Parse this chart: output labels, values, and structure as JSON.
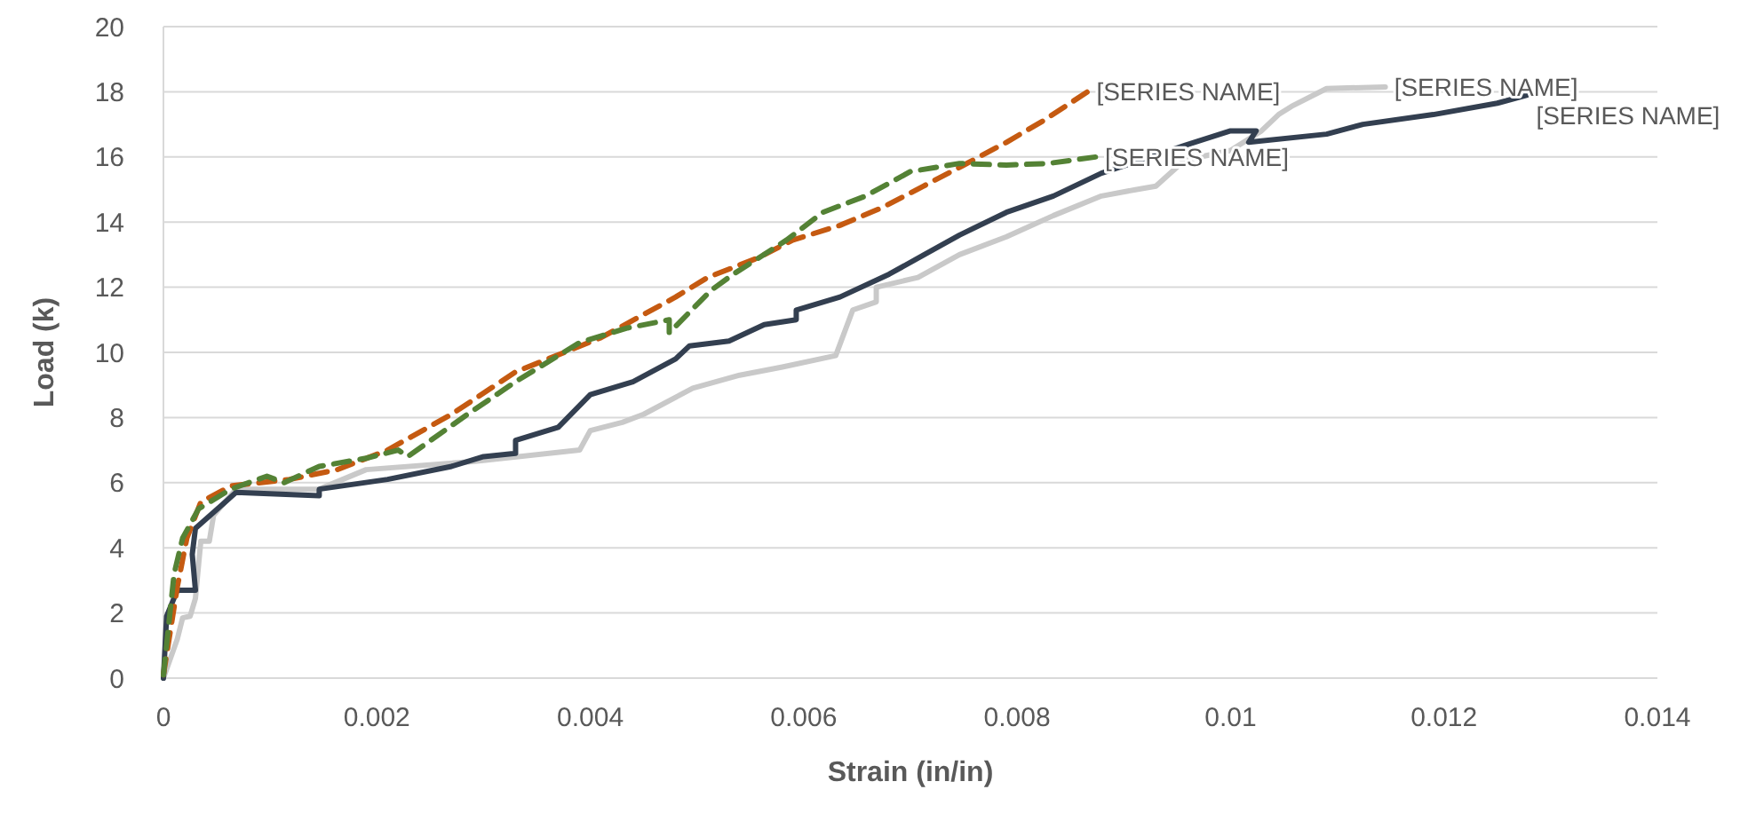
{
  "chart_data": {
    "type": "line",
    "xlabel": "Strain (in/in)",
    "ylabel": "Load (k)",
    "xlim": [
      0,
      0.014
    ],
    "xticks": [
      0,
      0.002,
      0.004,
      0.006,
      0.008,
      0.01,
      0.012,
      0.014
    ],
    "ylim": [
      0,
      20
    ],
    "yticks": [
      0,
      2,
      4,
      6,
      8,
      10,
      12,
      14,
      16,
      18,
      20
    ],
    "grid": "y",
    "marker": "none",
    "series": [
      {
        "name": "[SERIES NAME]",
        "color": "#c9c9c9",
        "line_style": "solid",
        "x": [
          0,
          0.00013,
          0.00018,
          0.00025,
          0.0003,
          0.00035,
          0.00043,
          0.00047,
          0.00068,
          0.00146,
          0.0019,
          0.0029,
          0.0039,
          0.004,
          0.0043,
          0.0045,
          0.00496,
          0.0054,
          0.0058,
          0.0063,
          0.00646,
          0.00668,
          0.00668,
          0.00707,
          0.00746,
          0.0079,
          0.00834,
          0.00879,
          0.00912,
          0.0093,
          0.00957,
          0.01,
          0.01029,
          0.01045,
          0.01057,
          0.0109,
          0.01145
        ],
        "values": [
          0,
          1.2,
          1.85,
          1.9,
          2.45,
          4.2,
          4.2,
          5.0,
          5.8,
          5.8,
          6.4,
          6.65,
          7.0,
          7.6,
          7.85,
          8.1,
          8.9,
          9.3,
          9.55,
          9.9,
          11.3,
          11.55,
          12.0,
          12.3,
          13.0,
          13.55,
          14.2,
          14.8,
          15.0,
          15.1,
          15.9,
          16.2,
          16.8,
          17.3,
          17.55,
          18.1,
          18.15
        ]
      },
      {
        "name": "[SERIES NAME]",
        "color": "#333f50",
        "line_style": "solid",
        "x": [
          0,
          3e-05,
          0.00013,
          0.0003,
          0.00027,
          0.0003,
          0.00068,
          0.00146,
          0.00146,
          0.0021,
          0.0027,
          0.003,
          0.0033,
          0.0033,
          0.0037,
          0.004,
          0.0044,
          0.0048,
          0.00493,
          0.0053,
          0.00563,
          0.00593,
          0.00593,
          0.00634,
          0.0068,
          0.00713,
          0.00746,
          0.0079,
          0.00834,
          0.00879,
          0.00907,
          0.00957,
          0.01,
          0.01024,
          0.01017,
          0.0109,
          0.01124,
          0.0119,
          0.0125,
          0.01278
        ],
        "values": [
          0,
          1.9,
          2.7,
          2.7,
          3.8,
          4.6,
          5.7,
          5.6,
          5.8,
          6.1,
          6.5,
          6.8,
          6.9,
          7.3,
          7.7,
          8.7,
          9.1,
          9.8,
          10.2,
          10.35,
          10.85,
          11.0,
          11.3,
          11.7,
          12.4,
          13.0,
          13.6,
          14.3,
          14.8,
          15.5,
          15.8,
          16.35,
          16.8,
          16.8,
          16.45,
          16.7,
          17.0,
          17.3,
          17.65,
          17.9
        ]
      },
      {
        "name": "[SERIES NAME]",
        "color": "#c55a11",
        "line_style": "dashed",
        "x": [
          0,
          0.00013,
          0.00022,
          0.00035,
          0.00063,
          0.00118,
          0.00163,
          0.0021,
          0.0027,
          0.0033,
          0.0041,
          0.0048,
          0.0051,
          0.00557,
          0.0059,
          0.00634,
          0.00674,
          0.00712,
          0.0075,
          0.0079,
          0.00824,
          0.00866
        ],
        "values": [
          0.1,
          2.8,
          4.3,
          5.4,
          5.9,
          6.1,
          6.4,
          7.0,
          8.1,
          9.4,
          10.45,
          11.7,
          12.3,
          12.9,
          13.45,
          13.9,
          14.45,
          15.1,
          15.75,
          16.45,
          17.1,
          18.0
        ]
      },
      {
        "name": "[SERIES NAME]",
        "color": "#548235",
        "line_style": "dashed",
        "x": [
          0,
          0.0001,
          0.00018,
          0.00033,
          0.00063,
          0.00097,
          0.00113,
          0.00146,
          0.0019,
          0.0022,
          0.00229,
          0.00285,
          0.0033,
          0.0039,
          0.00435,
          0.00474,
          0.00474,
          0.00513,
          0.00534,
          0.00584,
          0.00618,
          0.00658,
          0.007,
          0.00746,
          0.0079,
          0.00829,
          0.00874
        ],
        "values": [
          0.1,
          3.2,
          4.3,
          5.2,
          5.8,
          6.2,
          6.0,
          6.5,
          6.75,
          7.0,
          6.8,
          8.1,
          9.1,
          10.3,
          10.75,
          11.0,
          10.6,
          11.9,
          12.4,
          13.45,
          14.3,
          14.8,
          15.55,
          15.8,
          15.75,
          15.8,
          16.0
        ]
      }
    ]
  }
}
